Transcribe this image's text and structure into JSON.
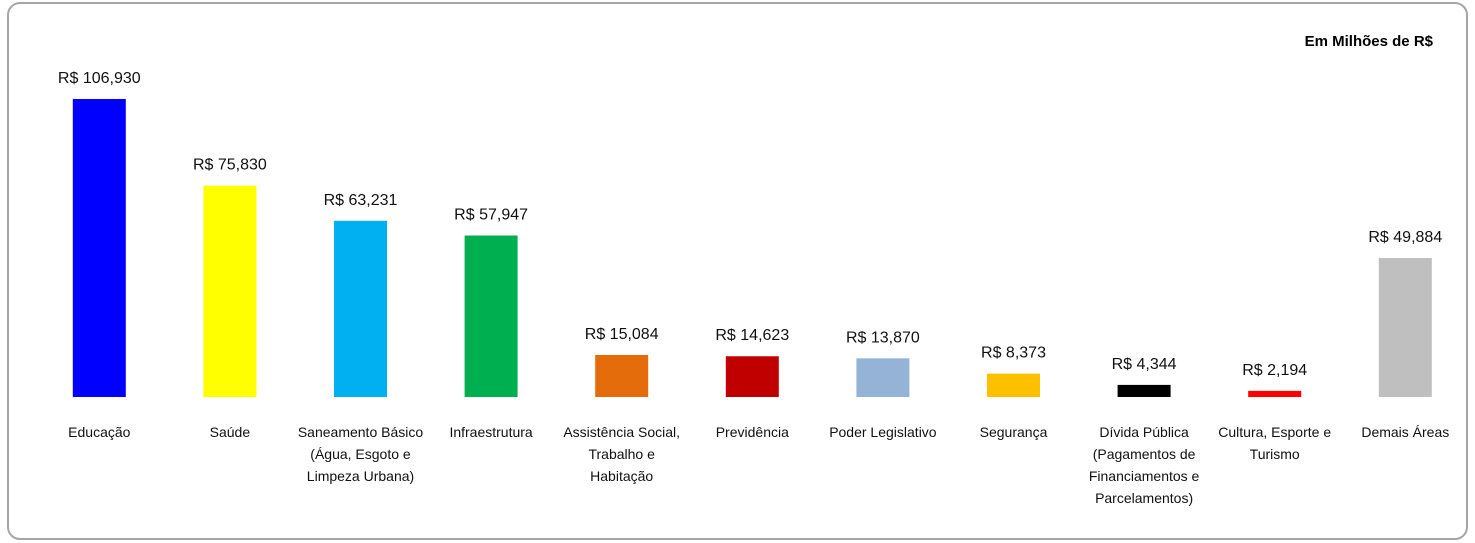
{
  "chart_data": {
    "type": "bar",
    "note_label": "Em Milhões de R$",
    "categories": [
      "Educação",
      "Saúde",
      "Saneamento Básico (Água, Esgoto e Limpeza Urbana)",
      "Infraestrutura",
      "Assistência Social, Trabalho e Habitação",
      "Previdência",
      "Poder Legislativo",
      "Segurança",
      "Dívida Pública (Pagamentos de Financiamentos e Parcelamentos)",
      "Cultura, Esporte e Turismo",
      "Demais Áreas"
    ],
    "values": [
      106.93,
      75.83,
      63.231,
      57.947,
      15.084,
      14.623,
      13.87,
      8.373,
      4.344,
      2.194,
      49.884
    ],
    "value_labels": [
      "R$ 106,930",
      "R$ 75,830",
      "R$ 63,231",
      "R$ 57,947",
      "R$ 15,084",
      "R$ 14,623",
      "R$ 13,870",
      "R$ 8,373",
      "R$ 4,344",
      "R$ 2,194",
      "R$ 49,884"
    ],
    "colors": [
      "#0000ff",
      "#ffff00",
      "#00b0f0",
      "#00b050",
      "#e46c0a",
      "#c00000",
      "#95b3d7",
      "#ffc000",
      "#000000",
      "#ff0000",
      "#bfbfbf"
    ]
  }
}
